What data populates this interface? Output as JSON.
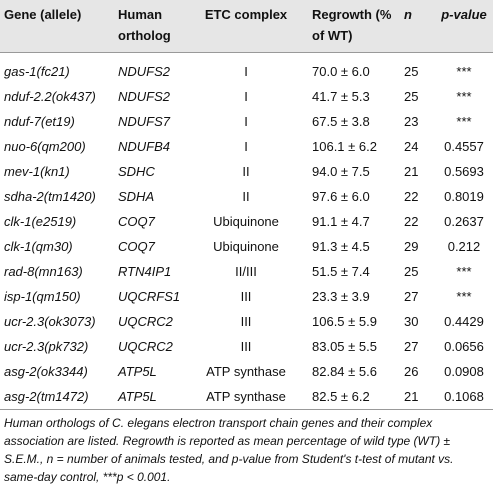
{
  "table": {
    "columns": [
      "Gene (allele)",
      "Human ortholog",
      "ETC complex",
      "Regrowth (% of WT)",
      "n",
      "p-value"
    ],
    "rows": [
      [
        "gas-1(fc21)",
        "NDUFS2",
        "I",
        "70.0 ± 6.0",
        "25",
        "***"
      ],
      [
        "nduf-2.2(ok437)",
        "NDUFS2",
        "I",
        "41.7 ± 5.3",
        "25",
        "***"
      ],
      [
        "nduf-7(et19)",
        "NDUFS7",
        "I",
        "67.5 ± 3.8",
        "23",
        "***"
      ],
      [
        "nuo-6(qm200)",
        "NDUFB4",
        "I",
        "106.1 ± 6.2",
        "24",
        "0.4557"
      ],
      [
        "mev-1(kn1)",
        "SDHC",
        "II",
        "94.0 ± 7.5",
        "21",
        "0.5693"
      ],
      [
        "sdha-2(tm1420)",
        "SDHA",
        "II",
        "97.6 ± 6.0",
        "22",
        "0.8019"
      ],
      [
        "clk-1(e2519)",
        "COQ7",
        "Ubiquinone",
        "91.1 ± 4.7",
        "22",
        "0.2637"
      ],
      [
        "clk-1(qm30)",
        "COQ7",
        "Ubiquinone",
        "91.3 ± 4.5",
        "29",
        "0.212"
      ],
      [
        "rad-8(mn163)",
        "RTN4IP1",
        "II/III",
        "51.5 ± 7.4",
        "25",
        "***"
      ],
      [
        "isp-1(qm150)",
        "UQCRFS1",
        "III",
        "23.3 ± 3.9",
        "27",
        "***"
      ],
      [
        "ucr-2.3(ok3073)",
        "UQCRC2",
        "III",
        "106.5 ± 5.9",
        "30",
        "0.4429"
      ],
      [
        "ucr-2.3(pk732)",
        "UQCRC2",
        "III",
        "83.05 ± 5.5",
        "27",
        "0.0656"
      ],
      [
        "asg-2(ok3344)",
        "ATP5L",
        "ATP synthase",
        "82.84 ± 5.6",
        "26",
        "0.0908"
      ],
      [
        "asg-2(tm1472)",
        "ATP5L",
        "ATP synthase",
        "82.5 ± 6.2",
        "21",
        "0.1068"
      ]
    ]
  },
  "footnote": "Human orthologs of C. elegans electron transport chain genes and their complex association are listed. Regrowth is reported as mean percentage of wild type (WT) ± S.E.M., n = number of animals tested, and p-value from Student's t-test of mutant vs. same-day control, ***p < 0.001."
}
